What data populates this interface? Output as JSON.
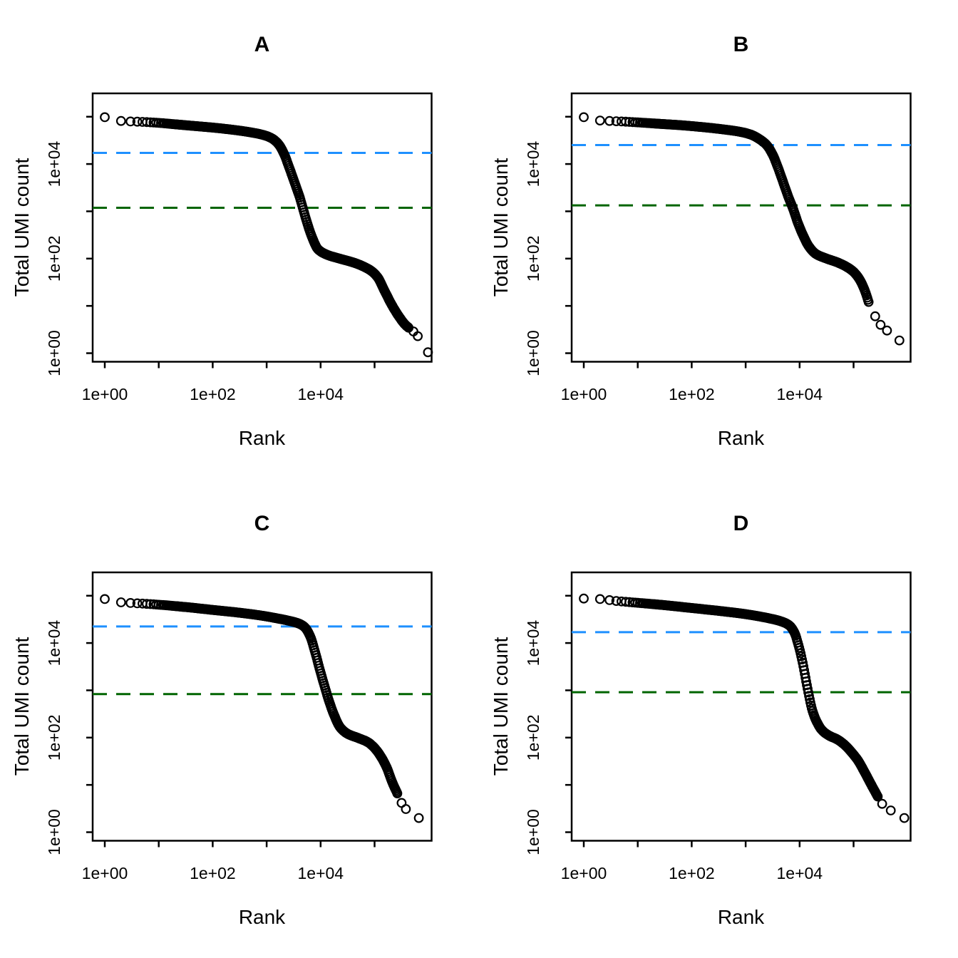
{
  "figure": {
    "background": "#ffffff",
    "point_color": "#000000",
    "knee_line_color": "#1e90ff",
    "inflection_line_color": "#006400"
  },
  "chart_data": [
    {
      "id": "A",
      "type": "scatter",
      "title": "A",
      "xlabel": "Rank",
      "ylabel": "Total UMI count",
      "x_scale": "log10",
      "y_scale": "log10",
      "xlim_log10": [
        0,
        6
      ],
      "ylim_log10": [
        0,
        5.5
      ],
      "x_ticks": [
        {
          "log10": 0,
          "label": "1e+00"
        },
        {
          "log10": 1,
          "label": ""
        },
        {
          "log10": 2,
          "label": "1e+02"
        },
        {
          "log10": 3,
          "label": ""
        },
        {
          "log10": 4,
          "label": "1e+04"
        },
        {
          "log10": 5,
          "label": ""
        }
      ],
      "y_ticks": [
        {
          "log10": 0,
          "label": "1e+00"
        },
        {
          "log10": 1,
          "label": ""
        },
        {
          "log10": 2,
          "label": "1e+02"
        },
        {
          "log10": 3,
          "label": ""
        },
        {
          "log10": 4,
          "label": "1e+04"
        },
        {
          "log10": 5,
          "label": ""
        }
      ],
      "threshold_lines": [
        {
          "name": "knee",
          "color": "#1e90ff",
          "style": "dashed",
          "log10_value": 4.236,
          "value": 17200
        },
        {
          "name": "inflection",
          "color": "#006400",
          "style": "dashed",
          "log10_value": 3.075,
          "value": 1190
        }
      ],
      "series_log10_anchors": [
        [
          0,
          4.99
        ],
        [
          0.3,
          4.91
        ],
        [
          0.48,
          4.9
        ],
        [
          0.7,
          4.89
        ],
        [
          1.0,
          4.87
        ],
        [
          1.3,
          4.84
        ],
        [
          1.6,
          4.81
        ],
        [
          2.0,
          4.77
        ],
        [
          2.4,
          4.72
        ],
        [
          2.7,
          4.67
        ],
        [
          2.95,
          4.61
        ],
        [
          3.1,
          4.54
        ],
        [
          3.22,
          4.42
        ],
        [
          3.32,
          4.22
        ],
        [
          3.42,
          3.92
        ],
        [
          3.52,
          3.6
        ],
        [
          3.62,
          3.27
        ],
        [
          3.7,
          2.95
        ],
        [
          3.78,
          2.65
        ],
        [
          3.86,
          2.4
        ],
        [
          3.95,
          2.2
        ],
        [
          4.1,
          2.09
        ],
        [
          4.35,
          2.0
        ],
        [
          4.6,
          1.92
        ],
        [
          4.8,
          1.83
        ],
        [
          4.95,
          1.73
        ],
        [
          5.06,
          1.6
        ],
        [
          5.18,
          1.33
        ],
        [
          5.32,
          1.02
        ],
        [
          5.45,
          0.78
        ],
        [
          5.57,
          0.6
        ],
        [
          5.63,
          0.54
        ]
      ],
      "tail_points_log10": [
        [
          5.72,
          0.46
        ],
        [
          5.8,
          0.36
        ],
        [
          5.99,
          0.02
        ]
      ]
    },
    {
      "id": "B",
      "type": "scatter",
      "title": "B",
      "xlabel": "Rank",
      "ylabel": "Total UMI count",
      "x_scale": "log10",
      "y_scale": "log10",
      "xlim_log10": [
        0,
        6
      ],
      "ylim_log10": [
        0,
        5.5
      ],
      "x_ticks": [
        {
          "log10": 0,
          "label": "1e+00"
        },
        {
          "log10": 1,
          "label": ""
        },
        {
          "log10": 2,
          "label": "1e+02"
        },
        {
          "log10": 3,
          "label": ""
        },
        {
          "log10": 4,
          "label": "1e+04"
        },
        {
          "log10": 5,
          "label": ""
        }
      ],
      "y_ticks": [
        {
          "log10": 0,
          "label": "1e+00"
        },
        {
          "log10": 1,
          "label": ""
        },
        {
          "log10": 2,
          "label": "1e+02"
        },
        {
          "log10": 3,
          "label": ""
        },
        {
          "log10": 4,
          "label": "1e+04"
        },
        {
          "log10": 5,
          "label": ""
        }
      ],
      "threshold_lines": [
        {
          "name": "knee",
          "color": "#1e90ff",
          "style": "dashed",
          "log10_value": 4.4,
          "value": 25100
        },
        {
          "name": "inflection",
          "color": "#006400",
          "style": "dashed",
          "log10_value": 3.125,
          "value": 1330
        }
      ],
      "series_log10_anchors": [
        [
          0,
          4.99
        ],
        [
          0.3,
          4.92
        ],
        [
          0.48,
          4.91
        ],
        [
          0.7,
          4.9
        ],
        [
          1.0,
          4.88
        ],
        [
          1.4,
          4.85
        ],
        [
          1.8,
          4.82
        ],
        [
          2.2,
          4.78
        ],
        [
          2.6,
          4.73
        ],
        [
          2.9,
          4.68
        ],
        [
          3.1,
          4.62
        ],
        [
          3.25,
          4.53
        ],
        [
          3.39,
          4.4
        ],
        [
          3.5,
          4.2
        ],
        [
          3.6,
          3.92
        ],
        [
          3.7,
          3.6
        ],
        [
          3.8,
          3.28
        ],
        [
          3.88,
          3.05
        ],
        [
          3.97,
          2.75
        ],
        [
          4.07,
          2.48
        ],
        [
          4.17,
          2.26
        ],
        [
          4.3,
          2.1
        ],
        [
          4.5,
          2.0
        ],
        [
          4.7,
          1.92
        ],
        [
          4.88,
          1.82
        ],
        [
          5.0,
          1.72
        ],
        [
          5.1,
          1.58
        ],
        [
          5.2,
          1.35
        ],
        [
          5.28,
          1.08
        ]
      ],
      "tail_points_log10": [
        [
          5.4,
          0.78
        ],
        [
          5.5,
          0.6
        ],
        [
          5.62,
          0.48
        ],
        [
          5.85,
          0.27
        ]
      ]
    },
    {
      "id": "C",
      "type": "scatter",
      "title": "C",
      "xlabel": "Rank",
      "ylabel": "Total UMI count",
      "x_scale": "log10",
      "y_scale": "log10",
      "xlim_log10": [
        0,
        6
      ],
      "ylim_log10": [
        0,
        5.5
      ],
      "x_ticks": [
        {
          "log10": 0,
          "label": "1e+00"
        },
        {
          "log10": 1,
          "label": ""
        },
        {
          "log10": 2,
          "label": "1e+02"
        },
        {
          "log10": 3,
          "label": ""
        },
        {
          "log10": 4,
          "label": "1e+04"
        },
        {
          "log10": 5,
          "label": ""
        }
      ],
      "y_ticks": [
        {
          "log10": 0,
          "label": "1e+00"
        },
        {
          "log10": 1,
          "label": ""
        },
        {
          "log10": 2,
          "label": "1e+02"
        },
        {
          "log10": 3,
          "label": ""
        },
        {
          "log10": 4,
          "label": "1e+04"
        },
        {
          "log10": 5,
          "label": ""
        }
      ],
      "threshold_lines": [
        {
          "name": "knee",
          "color": "#1e90ff",
          "style": "dashed",
          "log10_value": 4.35,
          "value": 22400
        },
        {
          "name": "inflection",
          "color": "#006400",
          "style": "dashed",
          "log10_value": 2.92,
          "value": 830
        }
      ],
      "series_log10_anchors": [
        [
          0,
          4.93
        ],
        [
          0.3,
          4.86
        ],
        [
          0.6,
          4.84
        ],
        [
          1.0,
          4.81
        ],
        [
          1.5,
          4.76
        ],
        [
          2.0,
          4.7
        ],
        [
          2.5,
          4.64
        ],
        [
          2.9,
          4.58
        ],
        [
          3.2,
          4.52
        ],
        [
          3.45,
          4.46
        ],
        [
          3.6,
          4.41
        ],
        [
          3.7,
          4.34
        ],
        [
          3.8,
          4.16
        ],
        [
          3.89,
          3.84
        ],
        [
          3.98,
          3.46
        ],
        [
          4.07,
          3.1
        ],
        [
          4.16,
          2.76
        ],
        [
          4.26,
          2.45
        ],
        [
          4.36,
          2.22
        ],
        [
          4.5,
          2.08
        ],
        [
          4.7,
          1.99
        ],
        [
          4.88,
          1.9
        ],
        [
          5.0,
          1.78
        ],
        [
          5.1,
          1.63
        ],
        [
          5.22,
          1.38
        ],
        [
          5.33,
          1.05
        ],
        [
          5.43,
          0.8
        ]
      ],
      "tail_points_log10": [
        [
          5.5,
          0.62
        ],
        [
          5.58,
          0.49
        ],
        [
          5.82,
          0.3
        ]
      ]
    },
    {
      "id": "D",
      "type": "scatter",
      "title": "D",
      "xlabel": "Rank",
      "ylabel": "Total UMI count",
      "x_scale": "log10",
      "y_scale": "log10",
      "xlim_log10": [
        0,
        6
      ],
      "ylim_log10": [
        0,
        5.5
      ],
      "x_ticks": [
        {
          "log10": 0,
          "label": "1e+00"
        },
        {
          "log10": 1,
          "label": ""
        },
        {
          "log10": 2,
          "label": "1e+02"
        },
        {
          "log10": 3,
          "label": ""
        },
        {
          "log10": 4,
          "label": "1e+04"
        },
        {
          "log10": 5,
          "label": ""
        }
      ],
      "y_ticks": [
        {
          "log10": 0,
          "label": "1e+00"
        },
        {
          "log10": 1,
          "label": ""
        },
        {
          "log10": 2,
          "label": "1e+02"
        },
        {
          "log10": 3,
          "label": ""
        },
        {
          "log10": 4,
          "label": "1e+04"
        },
        {
          "log10": 5,
          "label": ""
        }
      ],
      "threshold_lines": [
        {
          "name": "knee",
          "color": "#1e90ff",
          "style": "dashed",
          "log10_value": 4.23,
          "value": 17000
        },
        {
          "name": "inflection",
          "color": "#006400",
          "style": "dashed",
          "log10_value": 2.96,
          "value": 910
        }
      ],
      "series_log10_anchors": [
        [
          0,
          4.94
        ],
        [
          0.3,
          4.93
        ],
        [
          0.6,
          4.89
        ],
        [
          1.0,
          4.85
        ],
        [
          1.5,
          4.8
        ],
        [
          2.0,
          4.74
        ],
        [
          2.5,
          4.68
        ],
        [
          3.0,
          4.61
        ],
        [
          3.4,
          4.53
        ],
        [
          3.65,
          4.46
        ],
        [
          3.8,
          4.38
        ],
        [
          3.9,
          4.23
        ],
        [
          3.98,
          3.95
        ],
        [
          4.05,
          3.62
        ],
        [
          4.12,
          3.2
        ],
        [
          4.18,
          2.85
        ],
        [
          4.24,
          2.56
        ],
        [
          4.32,
          2.33
        ],
        [
          4.42,
          2.15
        ],
        [
          4.55,
          2.04
        ],
        [
          4.7,
          1.96
        ],
        [
          4.85,
          1.83
        ],
        [
          4.97,
          1.68
        ],
        [
          5.08,
          1.52
        ],
        [
          5.2,
          1.28
        ],
        [
          5.33,
          1.0
        ],
        [
          5.45,
          0.75
        ]
      ],
      "tail_points_log10": [
        [
          5.53,
          0.6
        ],
        [
          5.69,
          0.46
        ],
        [
          5.94,
          0.3
        ]
      ]
    }
  ]
}
